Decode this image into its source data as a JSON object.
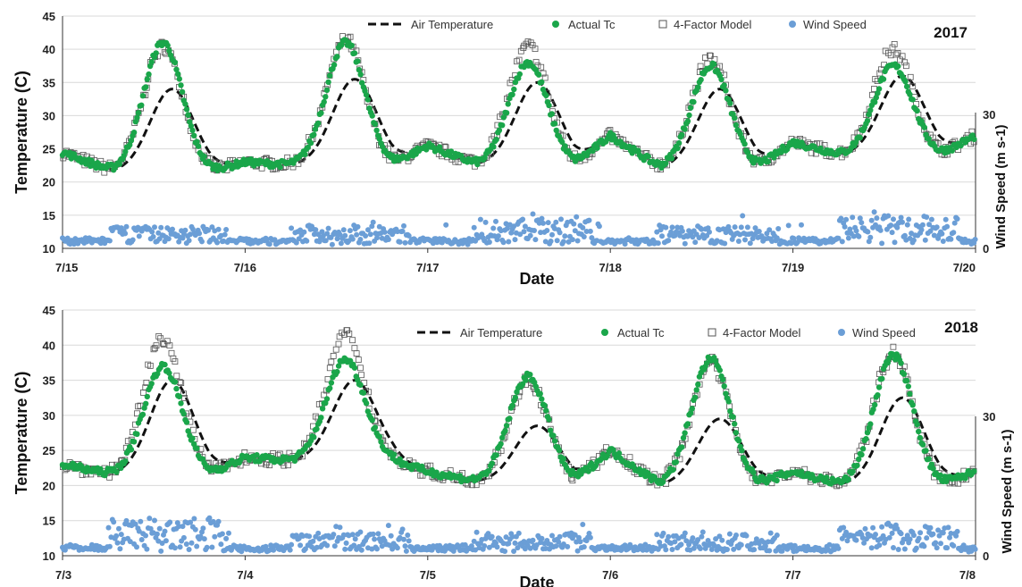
{
  "chart_data": [
    {
      "type": "scatter",
      "year_label": "2017",
      "xlabel": "Date",
      "ylabel": "Temperature (C)",
      "y2label": "Wind Speed (m s-1)",
      "x_ticks": [
        "7/15",
        "7/16",
        "7/17",
        "7/18",
        "7/19",
        "7/20"
      ],
      "ylim": [
        10,
        45
      ],
      "y_ticks": [
        10,
        15,
        20,
        25,
        30,
        35,
        40,
        45
      ],
      "y2lim": [
        0,
        30
      ],
      "y2_ticks": [
        0,
        30
      ],
      "legend": [
        "Air Temperature",
        "Actual Tc",
        "4-Factor Model",
        "Wind Speed"
      ],
      "days": [
        {
          "start": 24.5,
          "min": 21.5,
          "air_peak": 34.0,
          "tc_peak": 41.0,
          "model_peak": 40.5,
          "wind_peak": 2.5
        },
        {
          "start": 23.0,
          "min": 22.5,
          "air_peak": 35.5,
          "tc_peak": 41.0,
          "model_peak": 41.5,
          "wind_peak": 2.5
        },
        {
          "start": 25.5,
          "min": 22.5,
          "air_peak": 35.0,
          "tc_peak": 38.0,
          "model_peak": 40.5,
          "wind_peak": 3.5
        },
        {
          "start": 27.0,
          "min": 22.0,
          "air_peak": 34.0,
          "tc_peak": 37.5,
          "model_peak": 38.5,
          "wind_peak": 2.5
        },
        {
          "start": 26.0,
          "min": 24.0,
          "air_peak": 36.0,
          "tc_peak": 37.5,
          "model_peak": 40.0,
          "wind_peak": 4.0
        }
      ],
      "end_value": 27.0
    },
    {
      "type": "scatter",
      "year_label": "2018",
      "xlabel": "Date",
      "ylabel": "Temperature (C)",
      "y2label": "Wind Speed (m s-1)",
      "x_ticks": [
        "7/3",
        "7/4",
        "7/5",
        "7/6",
        "7/7",
        "7/8"
      ],
      "ylim": [
        10,
        45
      ],
      "y_ticks": [
        10,
        15,
        20,
        25,
        30,
        35,
        40,
        45
      ],
      "y2lim": [
        0,
        30
      ],
      "y2_ticks": [
        0,
        30
      ],
      "legend": [
        "Air Temperature",
        "Actual Tc",
        "4-Factor Model",
        "Wind Speed"
      ],
      "days": [
        {
          "start": 23.0,
          "min": 21.5,
          "air_peak": 35.0,
          "tc_peak": 37.0,
          "model_peak": 41.0,
          "wind_peak": 4.5
        },
        {
          "start": 24.0,
          "min": 23.5,
          "air_peak": 35.0,
          "tc_peak": 38.0,
          "model_peak": 41.5,
          "wind_peak": 2.5
        },
        {
          "start": 22.0,
          "min": 20.5,
          "air_peak": 28.5,
          "tc_peak": 35.5,
          "model_peak": 35.0,
          "wind_peak": 2.5
        },
        {
          "start": 25.0,
          "min": 20.0,
          "air_peak": 29.5,
          "tc_peak": 38.0,
          "model_peak": 37.5,
          "wind_peak": 2.5
        },
        {
          "start": 22.0,
          "min": 20.0,
          "air_peak": 32.5,
          "tc_peak": 38.5,
          "model_peak": 39.0,
          "wind_peak": 3.5
        }
      ],
      "end_value": 22.0
    }
  ],
  "colors": {
    "air_temperature": "#111111",
    "actual_tc": "#1aa64a",
    "model": "#555555",
    "wind_speed": "#6b9ed6",
    "grid": "#d9d9d9"
  }
}
